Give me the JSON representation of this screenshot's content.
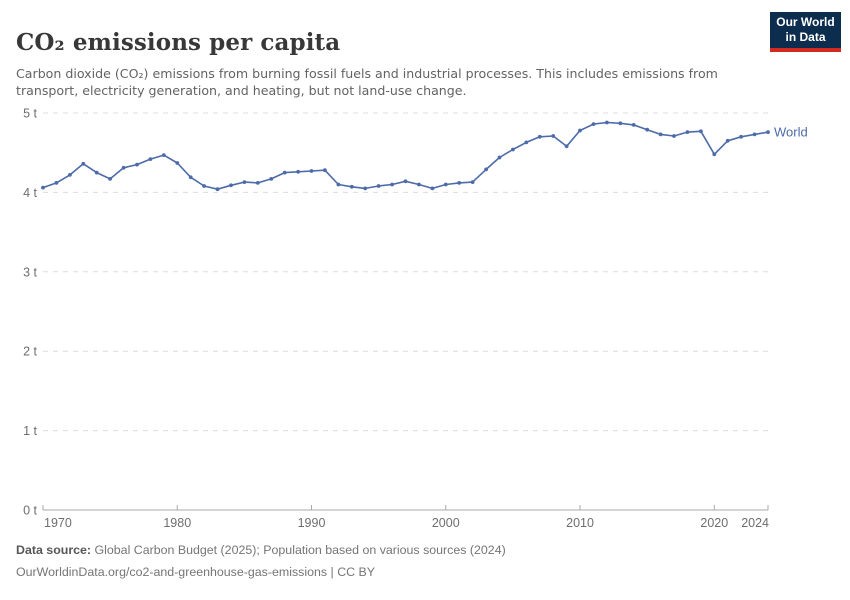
{
  "header": {
    "title": "CO₂ emissions per capita",
    "subtitle": "Carbon dioxide (CO₂) emissions from burning fossil fuels and industrial processes. This includes emissions from transport, electricity generation, and heating, but not land-use change.",
    "logo": {
      "line1": "Our World",
      "line2": "in Data",
      "bg_color": "#0d2d4e",
      "accent_color": "#d02a21"
    }
  },
  "chart_data": {
    "type": "line",
    "title": "CO₂ emissions per capita",
    "unit": "t",
    "xlim": [
      1970,
      2024
    ],
    "ylim": [
      0,
      5
    ],
    "grid": "horizontal-dashed",
    "legend_position": "end-of-line-label",
    "xticks": [
      1970,
      1980,
      1990,
      2000,
      2010,
      2020,
      2024
    ],
    "yticks": [
      {
        "value": 0,
        "label": "0 t"
      },
      {
        "value": 1,
        "label": "1 t"
      },
      {
        "value": 2,
        "label": "2 t"
      },
      {
        "value": 3,
        "label": "3 t"
      },
      {
        "value": 4,
        "label": "4 t"
      },
      {
        "value": 5,
        "label": "5 t"
      }
    ],
    "x": [
      1970,
      1971,
      1972,
      1973,
      1974,
      1975,
      1976,
      1977,
      1978,
      1979,
      1980,
      1981,
      1982,
      1983,
      1984,
      1985,
      1986,
      1987,
      1988,
      1989,
      1990,
      1991,
      1992,
      1993,
      1994,
      1995,
      1996,
      1997,
      1998,
      1999,
      2000,
      2001,
      2002,
      2003,
      2004,
      2005,
      2006,
      2007,
      2008,
      2009,
      2010,
      2011,
      2012,
      2013,
      2014,
      2015,
      2016,
      2017,
      2018,
      2019,
      2020,
      2021,
      2022,
      2023,
      2024
    ],
    "series": [
      {
        "name": "World",
        "color": "#4c6ba8",
        "values": [
          4.06,
          4.12,
          4.22,
          4.36,
          4.25,
          4.17,
          4.31,
          4.35,
          4.42,
          4.47,
          4.37,
          4.19,
          4.08,
          4.04,
          4.09,
          4.13,
          4.12,
          4.17,
          4.25,
          4.26,
          4.27,
          4.28,
          4.1,
          4.07,
          4.05,
          4.08,
          4.1,
          4.14,
          4.1,
          4.05,
          4.1,
          4.12,
          4.13,
          4.29,
          4.44,
          4.54,
          4.63,
          4.7,
          4.71,
          4.58,
          4.78,
          4.86,
          4.88,
          4.87,
          4.85,
          4.79,
          4.73,
          4.71,
          4.76,
          4.77,
          4.48,
          4.65,
          4.7,
          4.73,
          4.76
        ]
      }
    ],
    "axis_color": "#a8a8a8",
    "gridline_color": "#dcdcdc",
    "tick_label_color": "#6e6e6e"
  },
  "footer": {
    "source_label": "Data source:",
    "source_text": " Global Carbon Budget (2025); Population based on various sources (2024)",
    "link": "OurWorldinData.org/co2-and-greenhouse-gas-emissions",
    "separator": " | ",
    "license": "CC BY"
  }
}
